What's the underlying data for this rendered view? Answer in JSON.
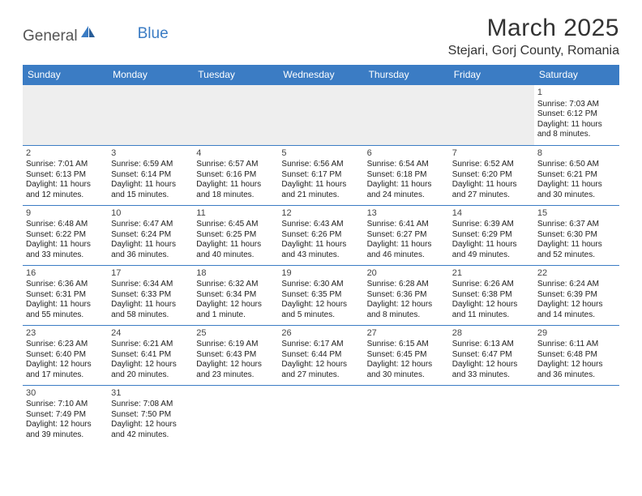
{
  "brand": {
    "part1": "General",
    "part2": "Blue"
  },
  "title": "March 2025",
  "location": "Stejari, Gorj County, Romania",
  "colors": {
    "accent": "#3b7cc4",
    "header_text": "#ffffff",
    "empty_bg": "#eeeeee",
    "body_text": "#222222",
    "page_bg": "#ffffff"
  },
  "weekday_headers": [
    "Sunday",
    "Monday",
    "Tuesday",
    "Wednesday",
    "Thursday",
    "Friday",
    "Saturday"
  ],
  "layout": {
    "first_day_column": 6,
    "days_in_month": 31
  },
  "days": [
    {
      "n": 1,
      "sunrise": "7:03 AM",
      "sunset": "6:12 PM",
      "dl": "11 hours and 8 minutes."
    },
    {
      "n": 2,
      "sunrise": "7:01 AM",
      "sunset": "6:13 PM",
      "dl": "11 hours and 12 minutes."
    },
    {
      "n": 3,
      "sunrise": "6:59 AM",
      "sunset": "6:14 PM",
      "dl": "11 hours and 15 minutes."
    },
    {
      "n": 4,
      "sunrise": "6:57 AM",
      "sunset": "6:16 PM",
      "dl": "11 hours and 18 minutes."
    },
    {
      "n": 5,
      "sunrise": "6:56 AM",
      "sunset": "6:17 PM",
      "dl": "11 hours and 21 minutes."
    },
    {
      "n": 6,
      "sunrise": "6:54 AM",
      "sunset": "6:18 PM",
      "dl": "11 hours and 24 minutes."
    },
    {
      "n": 7,
      "sunrise": "6:52 AM",
      "sunset": "6:20 PM",
      "dl": "11 hours and 27 minutes."
    },
    {
      "n": 8,
      "sunrise": "6:50 AM",
      "sunset": "6:21 PM",
      "dl": "11 hours and 30 minutes."
    },
    {
      "n": 9,
      "sunrise": "6:48 AM",
      "sunset": "6:22 PM",
      "dl": "11 hours and 33 minutes."
    },
    {
      "n": 10,
      "sunrise": "6:47 AM",
      "sunset": "6:24 PM",
      "dl": "11 hours and 36 minutes."
    },
    {
      "n": 11,
      "sunrise": "6:45 AM",
      "sunset": "6:25 PM",
      "dl": "11 hours and 40 minutes."
    },
    {
      "n": 12,
      "sunrise": "6:43 AM",
      "sunset": "6:26 PM",
      "dl": "11 hours and 43 minutes."
    },
    {
      "n": 13,
      "sunrise": "6:41 AM",
      "sunset": "6:27 PM",
      "dl": "11 hours and 46 minutes."
    },
    {
      "n": 14,
      "sunrise": "6:39 AM",
      "sunset": "6:29 PM",
      "dl": "11 hours and 49 minutes."
    },
    {
      "n": 15,
      "sunrise": "6:37 AM",
      "sunset": "6:30 PM",
      "dl": "11 hours and 52 minutes."
    },
    {
      "n": 16,
      "sunrise": "6:36 AM",
      "sunset": "6:31 PM",
      "dl": "11 hours and 55 minutes."
    },
    {
      "n": 17,
      "sunrise": "6:34 AM",
      "sunset": "6:33 PM",
      "dl": "11 hours and 58 minutes."
    },
    {
      "n": 18,
      "sunrise": "6:32 AM",
      "sunset": "6:34 PM",
      "dl": "12 hours and 1 minute."
    },
    {
      "n": 19,
      "sunrise": "6:30 AM",
      "sunset": "6:35 PM",
      "dl": "12 hours and 5 minutes."
    },
    {
      "n": 20,
      "sunrise": "6:28 AM",
      "sunset": "6:36 PM",
      "dl": "12 hours and 8 minutes."
    },
    {
      "n": 21,
      "sunrise": "6:26 AM",
      "sunset": "6:38 PM",
      "dl": "12 hours and 11 minutes."
    },
    {
      "n": 22,
      "sunrise": "6:24 AM",
      "sunset": "6:39 PM",
      "dl": "12 hours and 14 minutes."
    },
    {
      "n": 23,
      "sunrise": "6:23 AM",
      "sunset": "6:40 PM",
      "dl": "12 hours and 17 minutes."
    },
    {
      "n": 24,
      "sunrise": "6:21 AM",
      "sunset": "6:41 PM",
      "dl": "12 hours and 20 minutes."
    },
    {
      "n": 25,
      "sunrise": "6:19 AM",
      "sunset": "6:43 PM",
      "dl": "12 hours and 23 minutes."
    },
    {
      "n": 26,
      "sunrise": "6:17 AM",
      "sunset": "6:44 PM",
      "dl": "12 hours and 27 minutes."
    },
    {
      "n": 27,
      "sunrise": "6:15 AM",
      "sunset": "6:45 PM",
      "dl": "12 hours and 30 minutes."
    },
    {
      "n": 28,
      "sunrise": "6:13 AM",
      "sunset": "6:47 PM",
      "dl": "12 hours and 33 minutes."
    },
    {
      "n": 29,
      "sunrise": "6:11 AM",
      "sunset": "6:48 PM",
      "dl": "12 hours and 36 minutes."
    },
    {
      "n": 30,
      "sunrise": "7:10 AM",
      "sunset": "7:49 PM",
      "dl": "12 hours and 39 minutes."
    },
    {
      "n": 31,
      "sunrise": "7:08 AM",
      "sunset": "7:50 PM",
      "dl": "12 hours and 42 minutes."
    }
  ],
  "labels": {
    "sunrise": "Sunrise: ",
    "sunset": "Sunset: ",
    "daylight": "Daylight: "
  }
}
